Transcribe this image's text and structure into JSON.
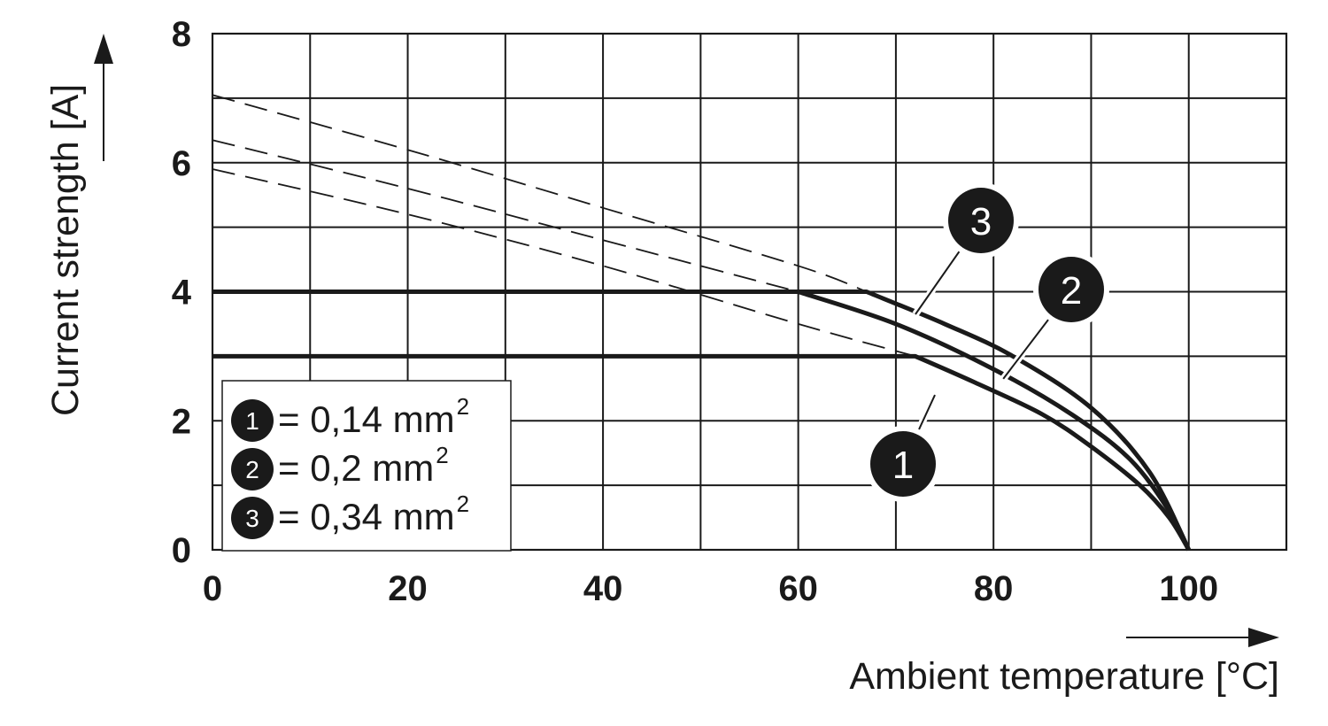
{
  "chart_data": {
    "type": "line",
    "xlabel": "Ambient temperature [°C]",
    "ylabel": "Current strength [A]",
    "xlim": [
      0,
      110
    ],
    "ylim": [
      0,
      8
    ],
    "x_ticks": [
      "0",
      "20",
      "40",
      "60",
      "80",
      "100"
    ],
    "y_ticks": [
      "0",
      "2",
      "4",
      "6",
      "8"
    ],
    "grid": true,
    "legend": {
      "placement": "bottom-left",
      "entries": [
        {
          "marker": "1",
          "text": "= 0,14 mm",
          "sup": "2"
        },
        {
          "marker": "2",
          "text": "= 0,2 mm",
          "sup": "2"
        },
        {
          "marker": "3",
          "text": "= 0,34 mm",
          "sup": "2"
        }
      ]
    },
    "series": [
      {
        "marker": "1",
        "limit_current": 3,
        "solid": [
          [
            0,
            3
          ],
          [
            72,
            3
          ],
          [
            78,
            2.6
          ],
          [
            85,
            2.1
          ],
          [
            90,
            1.6
          ],
          [
            95,
            1.0
          ],
          [
            98,
            0.5
          ],
          [
            100,
            0
          ]
        ],
        "dashed": [
          [
            0,
            5.9
          ],
          [
            20,
            5.2
          ],
          [
            40,
            4.4
          ],
          [
            60,
            3.5
          ],
          [
            72,
            3.0
          ]
        ]
      },
      {
        "marker": "2",
        "limit_current": 4,
        "solid": [
          [
            0,
            4
          ],
          [
            60,
            4
          ],
          [
            70,
            3.5
          ],
          [
            80,
            2.8
          ],
          [
            88,
            2.1
          ],
          [
            94,
            1.4
          ],
          [
            98,
            0.6
          ],
          [
            100,
            0
          ]
        ],
        "dashed": [
          [
            0,
            6.35
          ],
          [
            20,
            5.6
          ],
          [
            40,
            4.8
          ],
          [
            60,
            4.0
          ]
        ]
      },
      {
        "marker": "3",
        "limit_current": 4,
        "solid": [
          [
            0,
            4
          ],
          [
            67,
            4
          ],
          [
            75,
            3.5
          ],
          [
            82,
            3.0
          ],
          [
            90,
            2.2
          ],
          [
            96,
            1.2
          ],
          [
            100,
            0
          ]
        ],
        "dashed": [
          [
            0,
            7.05
          ],
          [
            20,
            6.2
          ],
          [
            40,
            5.3
          ],
          [
            60,
            4.4
          ],
          [
            67,
            4.0
          ]
        ]
      }
    ],
    "callouts": [
      {
        "marker": "3",
        "target": [
          72,
          3.65
        ]
      },
      {
        "marker": "2",
        "target": [
          81,
          2.65
        ]
      },
      {
        "marker": "1",
        "target": [
          74,
          2.4
        ]
      }
    ]
  }
}
